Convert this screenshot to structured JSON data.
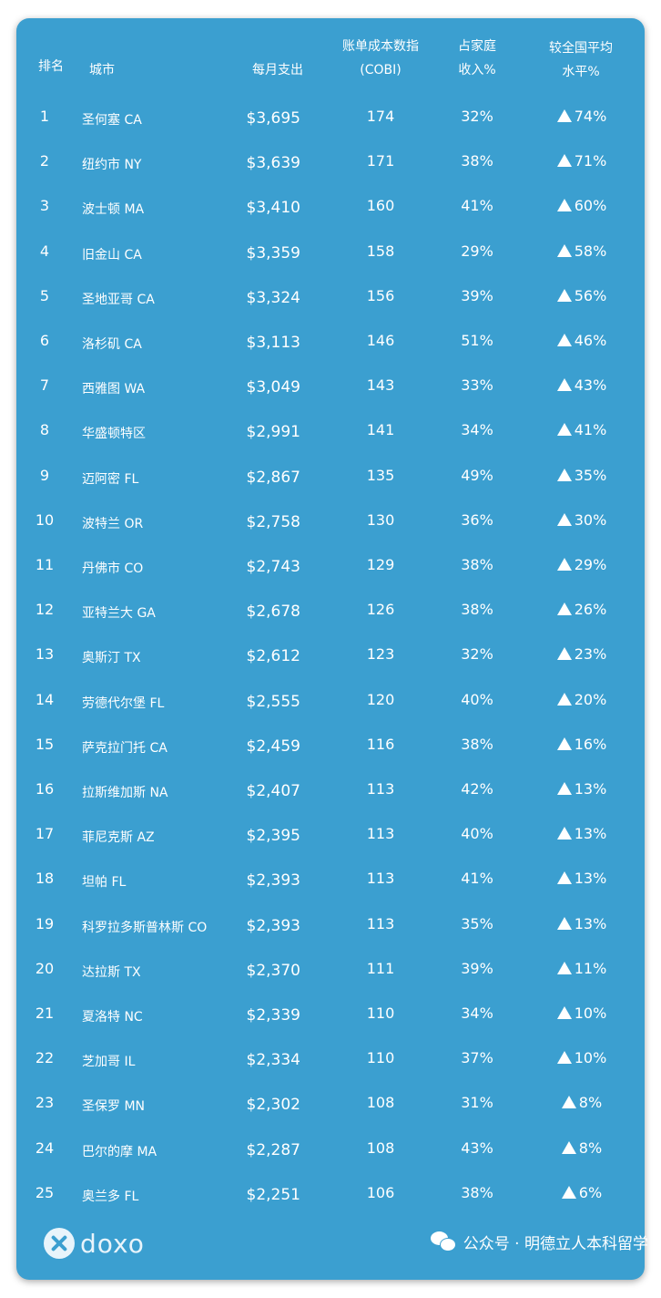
{
  "headers": {
    "rank": "排名",
    "city": "城市",
    "monthly": "每月支出",
    "cobi_line1": "账单成本数指",
    "cobi_line2": "(COBI)",
    "share_line1": "占家庭",
    "share_line2": "收入%",
    "vs_line1": "较全国平均",
    "vs_line2": "水平%"
  },
  "rows": [
    {
      "rank": "1",
      "city": "圣何塞  CA",
      "spend": "$3,695",
      "cobi": "174",
      "share": "32%",
      "vs": "74%"
    },
    {
      "rank": "2",
      "city": "纽约市 NY",
      "spend": "$3,639",
      "cobi": "171",
      "share": "38%",
      "vs": "71%"
    },
    {
      "rank": "3",
      "city": "波士顿 MA",
      "spend": "$3,410",
      "cobi": "160",
      "share": "41%",
      "vs": "60%"
    },
    {
      "rank": "4",
      "city": "旧金山 CA",
      "spend": "$3,359",
      "cobi": "158",
      "share": "29%",
      "vs": "58%"
    },
    {
      "rank": "5",
      "city": "圣地亚哥 CA",
      "spend": "$3,324",
      "cobi": "156",
      "share": "39%",
      "vs": "56%"
    },
    {
      "rank": "6",
      "city": "洛杉矶 CA",
      "spend": "$3,113",
      "cobi": "146",
      "share": "51%",
      "vs": "46%"
    },
    {
      "rank": "7",
      "city": "西雅图 WA",
      "spend": "$3,049",
      "cobi": "143",
      "share": "33%",
      "vs": "43%"
    },
    {
      "rank": "8",
      "city": "华盛顿特区",
      "spend": "$2,991",
      "cobi": "141",
      "share": "34%",
      "vs": "41%"
    },
    {
      "rank": "9",
      "city": "迈阿密 FL",
      "spend": "$2,867",
      "cobi": "135",
      "share": "49%",
      "vs": "35%"
    },
    {
      "rank": "10",
      "city": "波特兰 OR",
      "spend": "$2,758",
      "cobi": "130",
      "share": "36%",
      "vs": "30%"
    },
    {
      "rank": "11",
      "city": "丹佛市 CO",
      "spend": "$2,743",
      "cobi": "129",
      "share": "38%",
      "vs": "29%"
    },
    {
      "rank": "12",
      "city": "亚特兰大 GA",
      "spend": "$2,678",
      "cobi": "126",
      "share": "38%",
      "vs": "26%"
    },
    {
      "rank": "13",
      "city": "奥斯汀 TX",
      "spend": "$2,612",
      "cobi": "123",
      "share": "32%",
      "vs": "23%"
    },
    {
      "rank": "14",
      "city": "劳德代尔堡 FL",
      "spend": "$2,555",
      "cobi": "120",
      "share": "40%",
      "vs": "20%"
    },
    {
      "rank": "15",
      "city": "萨克拉门托 CA",
      "spend": "$2,459",
      "cobi": "116",
      "share": "38%",
      "vs": "16%"
    },
    {
      "rank": "16",
      "city": "拉斯维加斯 NA",
      "spend": "$2,407",
      "cobi": "113",
      "share": "42%",
      "vs": "13%"
    },
    {
      "rank": "17",
      "city": "菲尼克斯 AZ",
      "spend": "$2,395",
      "cobi": "113",
      "share": "40%",
      "vs": "13%"
    },
    {
      "rank": "18",
      "city": "坦帕 FL",
      "spend": "$2,393",
      "cobi": "113",
      "share": "41%",
      "vs": "13%"
    },
    {
      "rank": "19",
      "city": "科罗拉多斯普林斯 CO",
      "spend": "$2,393",
      "cobi": "113",
      "share": "35%",
      "vs": "13%"
    },
    {
      "rank": "20",
      "city": "达拉斯 TX",
      "spend": "$2,370",
      "cobi": "111",
      "share": "39%",
      "vs": "11%"
    },
    {
      "rank": "21",
      "city": "夏洛特 NC",
      "spend": "$2,339",
      "cobi": "110",
      "share": "34%",
      "vs": "10%"
    },
    {
      "rank": "22",
      "city": "芝加哥 IL",
      "spend": "$2,334",
      "cobi": "110",
      "share": "37%",
      "vs": "10%"
    },
    {
      "rank": "23",
      "city": "圣保罗 MN",
      "spend": "$2,302",
      "cobi": "108",
      "share": "31%",
      "vs": "8%"
    },
    {
      "rank": "24",
      "city": "巴尔的摩 MA",
      "spend": "$2,287",
      "cobi": "108",
      "share": "43%",
      "vs": "8%"
    },
    {
      "rank": "25",
      "city": "奥兰多 FL",
      "spend": "$2,251",
      "cobi": "106",
      "share": "38%",
      "vs": "6%"
    }
  ],
  "brand": {
    "logo_text": "doxo"
  },
  "watermark": {
    "text": "公众号 · 明德立人本科留学"
  },
  "icons": {
    "trend": "up-triangle-icon",
    "logo": "doxo-logo-icon",
    "wechat": "wechat-icon"
  },
  "colors": {
    "panel": "#3b9fd0",
    "text": "#ffffff"
  }
}
